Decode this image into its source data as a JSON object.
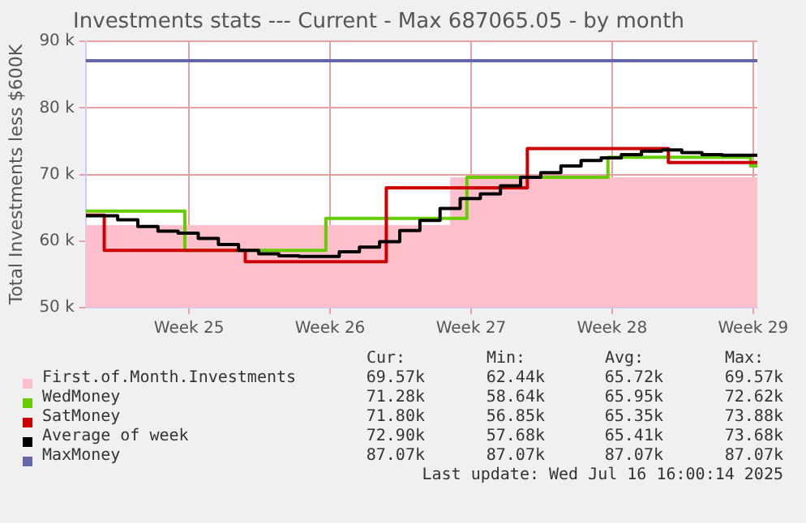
{
  "chart_data": {
    "type": "step",
    "title": "Investments stats --- Current - Max 687065.05 - by month",
    "ylabel": "Total Investments less $600K",
    "xlim": [
      "2025-06-13T08:00",
      "2025-07-16T16:00"
    ],
    "xticks": [
      {
        "value": "2025-06-18T11:00",
        "label": "Week 25"
      },
      {
        "value": "2025-06-25T11:00",
        "label": "Week 26"
      },
      {
        "value": "2025-07-02T11:00",
        "label": "Week 27"
      },
      {
        "value": "2025-07-09T11:00",
        "label": "Week 28"
      },
      {
        "value": "2025-07-16T11:00",
        "label": "Week 29"
      }
    ],
    "ylim": [
      50,
      90
    ],
    "yticks": [
      {
        "value": 50,
        "label": "50 k"
      },
      {
        "value": 60,
        "label": "60 k"
      },
      {
        "value": 70,
        "label": "70 k"
      },
      {
        "value": 80,
        "label": "80 k"
      },
      {
        "value": 90,
        "label": "90 k"
      }
    ],
    "grid": true,
    "legend": "bottom",
    "series": [
      {
        "name": "First.of.Month.Investments",
        "type": "area",
        "color": "#ffc0cb",
        "x": [
          "2025-06-13T08:00",
          "2025-07-01T10:00",
          "2025-07-16T16:00"
        ],
        "values": [
          62.4,
          69.6,
          69.6
        ]
      },
      {
        "name": "WedMoney",
        "color": "#66cc00",
        "x": [
          "2025-06-13T08:00",
          "2025-06-18T06:00",
          "2025-06-25T06:00",
          "2025-07-02T06:00",
          "2025-07-09T06:00",
          "2025-07-16T08:00",
          "2025-07-16T16:00"
        ],
        "values": [
          64.5,
          58.6,
          63.4,
          69.6,
          72.6,
          71.3,
          71.3
        ]
      },
      {
        "name": "SatMoney",
        "color": "#cc0000",
        "x": [
          "2025-06-13T08:00",
          "2025-06-14T06:00",
          "2025-06-21T06:00",
          "2025-06-28T06:00",
          "2025-07-05T06:00",
          "2025-07-12T06:00",
          "2025-07-16T16:00"
        ],
        "values": [
          63.9,
          58.6,
          56.9,
          68.0,
          73.9,
          71.8,
          71.8
        ]
      },
      {
        "name": "Average of week",
        "color": "#000000",
        "x": [
          "2025-06-13T08:00",
          "2025-06-14T22:00",
          "2025-06-15T22:00",
          "2025-06-16T22:00",
          "2025-06-17T22:00",
          "2025-06-18T22:00",
          "2025-06-19T22:00",
          "2025-06-20T22:00",
          "2025-06-21T22:00",
          "2025-06-22T22:00",
          "2025-06-23T22:00",
          "2025-06-25T22:00",
          "2025-06-26T22:00",
          "2025-06-27T22:00",
          "2025-06-28T22:00",
          "2025-06-29T22:00",
          "2025-06-30T22:00",
          "2025-07-01T22:00",
          "2025-07-02T22:00",
          "2025-07-03T22:00",
          "2025-07-04T22:00",
          "2025-07-05T22:00",
          "2025-07-06T22:00",
          "2025-07-07T22:00",
          "2025-07-08T22:00",
          "2025-07-09T22:00",
          "2025-07-10T22:00",
          "2025-07-11T22:00",
          "2025-07-12T22:00",
          "2025-07-13T22:00",
          "2025-07-14T22:00",
          "2025-07-16T16:00"
        ],
        "values": [
          63.8,
          63.2,
          62.2,
          61.5,
          61.2,
          60.4,
          59.5,
          58.6,
          58.1,
          57.8,
          57.7,
          58.4,
          59.1,
          59.9,
          61.6,
          63.1,
          64.9,
          66.4,
          67.1,
          68.3,
          69.6,
          70.3,
          71.3,
          72.1,
          72.5,
          73.0,
          73.5,
          73.7,
          73.3,
          73.0,
          72.9,
          72.9
        ]
      },
      {
        "name": "MaxMoney",
        "color": "#6666aa",
        "x": [
          "2025-06-13T08:00",
          "2025-07-16T16:00"
        ],
        "values": [
          87.1,
          87.1
        ]
      }
    ],
    "annotations": [
      "Cur:",
      "Min:",
      "Avg:",
      "Max:",
      "69.57k",
      "62.44k",
      "65.72k",
      "69.57k",
      "71.28k",
      "58.64k",
      "65.95k",
      "72.62k",
      "71.80k",
      "56.85k",
      "65.35k",
      "73.88k",
      "72.90k",
      "57.68k",
      "65.41k",
      "73.68k",
      "87.07k",
      "87.07k",
      "87.07k",
      "87.07k",
      "Last update: Wed Jul 16 16:00:14 2025"
    ]
  }
}
